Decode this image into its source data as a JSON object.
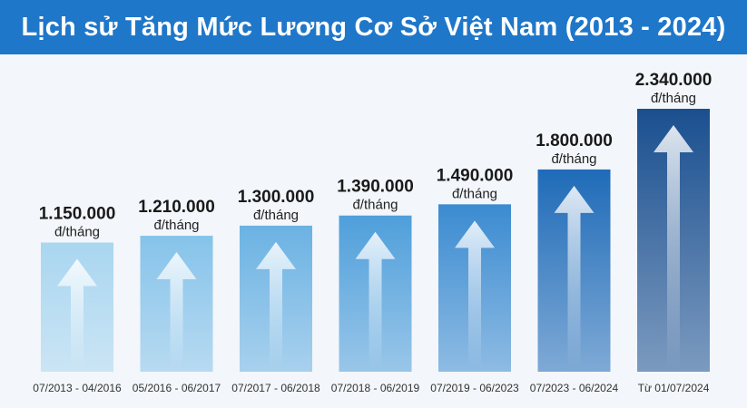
{
  "title": "Lịch sử Tăng Mức Lương Cơ Sở Việt Nam (2013 - 2024)",
  "colors": {
    "title_bg": "#1f77c9",
    "bars": [
      "#a9d6f0",
      "#86c3ea",
      "#6bb2e3",
      "#4f9fdb",
      "#3b8bd1",
      "#1f6bb8",
      "#1a4f8f"
    ]
  },
  "chart_data": {
    "type": "bar",
    "title": "Lịch sử Tăng Mức Lương Cơ Sở Việt Nam (2013 - 2024)",
    "categories": [
      "07/2013 - 04/2016",
      "05/2016 - 06/2017",
      "07/2017 - 06/2018",
      "07/2018 - 06/2019",
      "07/2019 - 06/2023",
      "07/2023 - 06/2024",
      "Từ 01/07/2024"
    ],
    "values": [
      1150000,
      1210000,
      1300000,
      1390000,
      1490000,
      1800000,
      2340000
    ],
    "value_labels": [
      "1.150.000",
      "1.210.000",
      "1.300.000",
      "1.390.000",
      "1.490.000",
      "1.800.000",
      "2.340.000"
    ],
    "unit_label": "đ/tháng",
    "xlabel": "",
    "ylabel": "",
    "grid": false,
    "legend": "none"
  }
}
